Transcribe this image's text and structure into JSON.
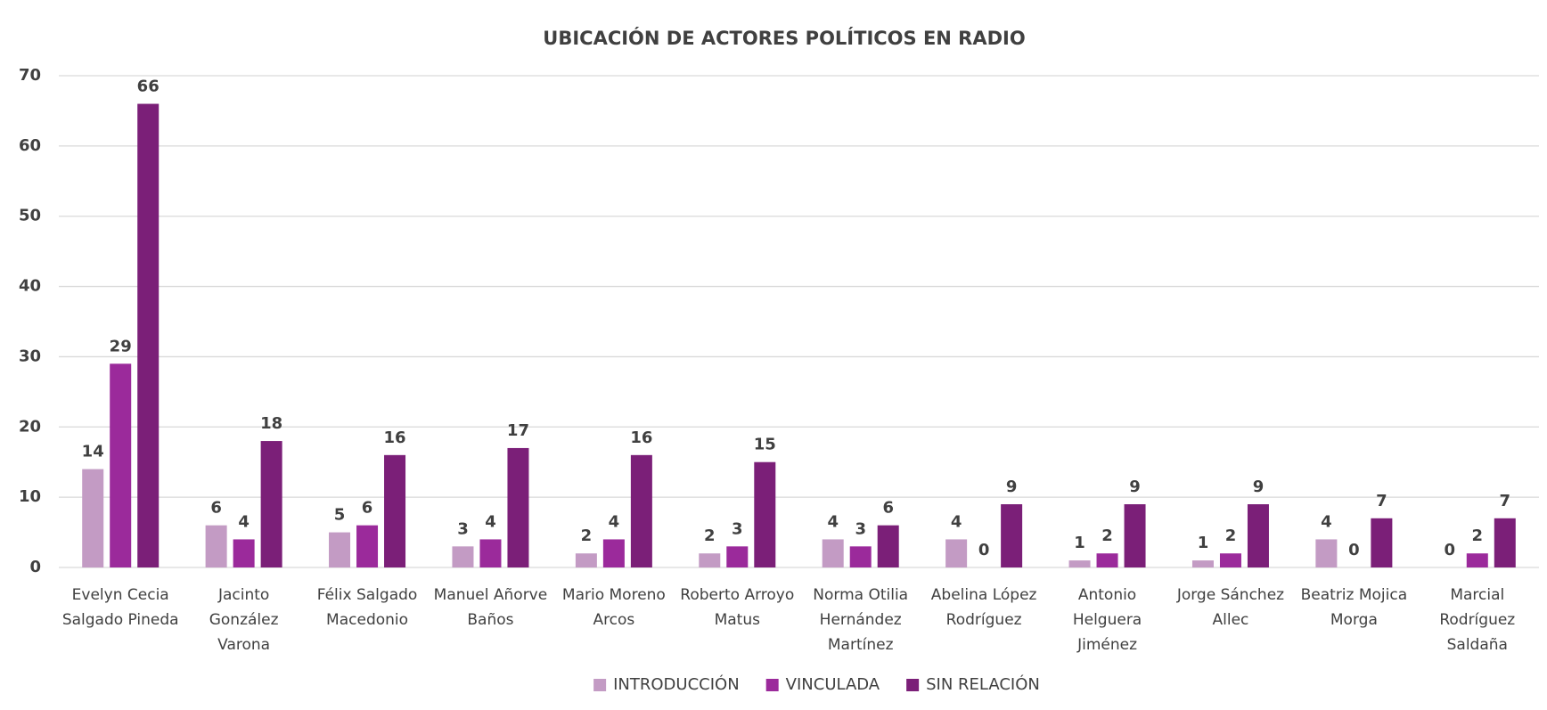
{
  "chart_data": {
    "type": "bar",
    "title": "UBICACIÓN DE ACTORES POLÍTICOS EN RADIO",
    "categories": [
      "Evelyn Cecia Salgado Pineda",
      "Jacinto González Varona",
      "Félix Salgado Macedonio",
      "Manuel Añorve Baños",
      "Mario Moreno Arcos",
      "Roberto Arroyo Matus",
      "Norma Otilia Hernández Martínez",
      "Abelina López Rodríguez",
      "Antonio Helguera Jiménez",
      "Jorge Sánchez Allec",
      "Beatriz Mojica Morga",
      "Marcial Rodríguez Saldaña"
    ],
    "series": [
      {
        "name": "INTRODUCCIÓN",
        "color": "#c39bc4",
        "values": [
          14,
          6,
          5,
          3,
          2,
          2,
          4,
          4,
          1,
          1,
          4,
          0
        ]
      },
      {
        "name": "VINCULADA",
        "color": "#9b2a9b",
        "values": [
          29,
          4,
          6,
          4,
          4,
          3,
          3,
          0,
          2,
          2,
          0,
          2
        ]
      },
      {
        "name": "SIN RELACIÓN",
        "color": "#7b1f78",
        "values": [
          66,
          18,
          16,
          17,
          16,
          15,
          6,
          9,
          9,
          9,
          7,
          7
        ]
      }
    ],
    "ylim": [
      0,
      70
    ],
    "yticks": [
      0,
      10,
      20,
      30,
      40,
      50,
      60,
      70
    ],
    "grid": true,
    "legend": "bottom"
  }
}
